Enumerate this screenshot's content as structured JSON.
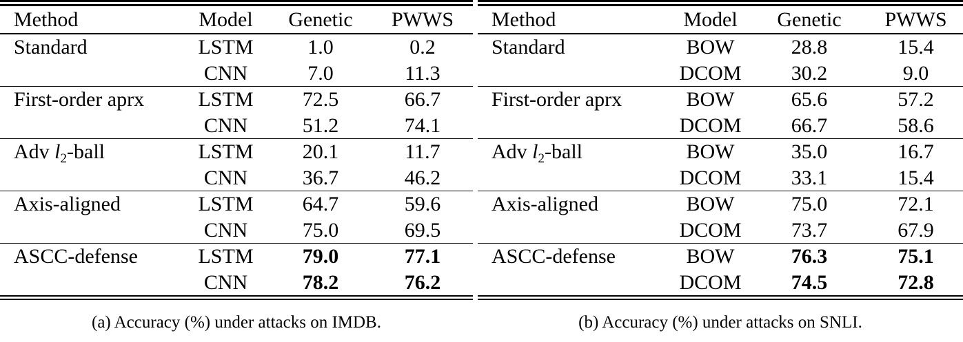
{
  "tables": [
    {
      "headers": [
        "Method",
        "Model",
        "Genetic",
        "PWWS"
      ],
      "groups": [
        {
          "method": {
            "text": "Standard"
          },
          "rows": [
            {
              "model": "LSTM",
              "genetic": "1.0",
              "pwws": "0.2",
              "bold": false
            },
            {
              "model": "CNN",
              "genetic": "7.0",
              "pwws": "11.3",
              "bold": false
            }
          ]
        },
        {
          "method": {
            "text": "First-order aprx"
          },
          "rows": [
            {
              "model": "LSTM",
              "genetic": "72.5",
              "pwws": "66.7",
              "bold": false
            },
            {
              "model": "CNN",
              "genetic": "51.2",
              "pwws": "74.1",
              "bold": false
            }
          ]
        },
        {
          "method": {
            "text": "Adv ",
            "math": "l",
            "sub": "2",
            "suffix": "-ball"
          },
          "rows": [
            {
              "model": "LSTM",
              "genetic": "20.1",
              "pwws": "11.7",
              "bold": false
            },
            {
              "model": "CNN",
              "genetic": "36.7",
              "pwws": "46.2",
              "bold": false
            }
          ]
        },
        {
          "method": {
            "text": "Axis-aligned"
          },
          "rows": [
            {
              "model": "LSTM",
              "genetic": "64.7",
              "pwws": "59.6",
              "bold": false
            },
            {
              "model": "CNN",
              "genetic": "75.0",
              "pwws": "69.5",
              "bold": false
            }
          ]
        },
        {
          "method": {
            "text": "ASCC-defense"
          },
          "rows": [
            {
              "model": "LSTM",
              "genetic": "79.0",
              "pwws": "77.1",
              "bold": true
            },
            {
              "model": "CNN",
              "genetic": "78.2",
              "pwws": "76.2",
              "bold": true
            }
          ]
        }
      ],
      "caption": "(a) Accuracy (%) under attacks on IMDB."
    },
    {
      "headers": [
        "Method",
        "Model",
        "Genetic",
        "PWWS"
      ],
      "groups": [
        {
          "method": {
            "text": "Standard"
          },
          "rows": [
            {
              "model": "BOW",
              "genetic": "28.8",
              "pwws": "15.4",
              "bold": false
            },
            {
              "model": "DCOM",
              "genetic": "30.2",
              "pwws": "9.0",
              "bold": false
            }
          ]
        },
        {
          "method": {
            "text": "First-order aprx"
          },
          "rows": [
            {
              "model": "BOW",
              "genetic": "65.6",
              "pwws": "57.2",
              "bold": false
            },
            {
              "model": "DCOM",
              "genetic": "66.7",
              "pwws": "58.6",
              "bold": false
            }
          ]
        },
        {
          "method": {
            "text": "Adv ",
            "math": "l",
            "sub": "2",
            "suffix": "-ball"
          },
          "rows": [
            {
              "model": "BOW",
              "genetic": "35.0",
              "pwws": "16.7",
              "bold": false
            },
            {
              "model": "DCOM",
              "genetic": "33.1",
              "pwws": "15.4",
              "bold": false
            }
          ]
        },
        {
          "method": {
            "text": "Axis-aligned"
          },
          "rows": [
            {
              "model": "BOW",
              "genetic": "75.0",
              "pwws": "72.1",
              "bold": false
            },
            {
              "model": "DCOM",
              "genetic": "73.7",
              "pwws": "67.9",
              "bold": false
            }
          ]
        },
        {
          "method": {
            "text": "ASCC-defense"
          },
          "rows": [
            {
              "model": "BOW",
              "genetic": "76.3",
              "pwws": "75.1",
              "bold": true
            },
            {
              "model": "DCOM",
              "genetic": "74.5",
              "pwws": "72.8",
              "bold": true
            }
          ]
        }
      ],
      "caption": "(b) Accuracy (%) under attacks on SNLI."
    }
  ]
}
